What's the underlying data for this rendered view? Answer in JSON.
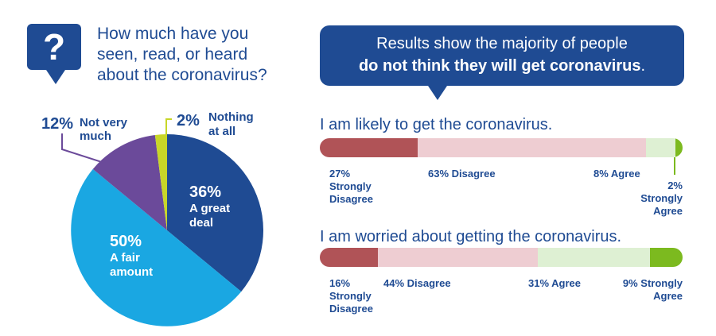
{
  "question": {
    "mark": "?",
    "lines": [
      "How much have you",
      "seen, read, or heard",
      "about the coronavirus?"
    ]
  },
  "results": {
    "line1": "Results show the majority of people",
    "line2_bold": "do not think they will get coronavirus",
    "line2_end": "."
  },
  "colors": {
    "navy": "#1f4b93",
    "pie": [
      "#1f4b93",
      "#1aa7e2",
      "#6b4a9a",
      "#c8d628"
    ],
    "strongly_disagree": "#b05357",
    "disagree": "#eecdd2",
    "agree": "#def0d3",
    "strongly_agree": "#7cba1f"
  },
  "chart_data": [
    {
      "type": "pie",
      "slices": [
        {
          "value": 36,
          "pct_label": "36%",
          "label": [
            "A great",
            "deal"
          ]
        },
        {
          "value": 50,
          "pct_label": "50%",
          "label": [
            "A fair",
            "amount"
          ]
        },
        {
          "value": 12,
          "pct_label": "12%",
          "label": [
            "Not very",
            "much"
          ]
        },
        {
          "value": 2,
          "pct_label": "2%",
          "label": [
            "Nothing",
            "at all"
          ]
        }
      ]
    },
    {
      "type": "bar",
      "title": "I am likely to get the coronavirus.",
      "categories": [
        "Strongly Disagree",
        "Disagree",
        "Agree",
        "Strongly Agree"
      ],
      "values": [
        27,
        63,
        8,
        2
      ],
      "labels": [
        [
          "27%",
          "Strongly",
          "Disagree"
        ],
        [
          "63% Disagree"
        ],
        [
          "8% Agree"
        ],
        [
          "2%",
          "Strongly",
          "Agree"
        ]
      ]
    },
    {
      "type": "bar",
      "title": "I am worried about getting the coronavirus.",
      "categories": [
        "Strongly Disagree",
        "Disagree",
        "Agree",
        "Strongly Agree"
      ],
      "values": [
        16,
        44,
        31,
        9
      ],
      "labels": [
        [
          "16%",
          "Strongly",
          "Disagree"
        ],
        [
          "44% Disagree"
        ],
        [
          "31% Agree"
        ],
        [
          "9% Strongly",
          "Agree"
        ]
      ]
    }
  ]
}
